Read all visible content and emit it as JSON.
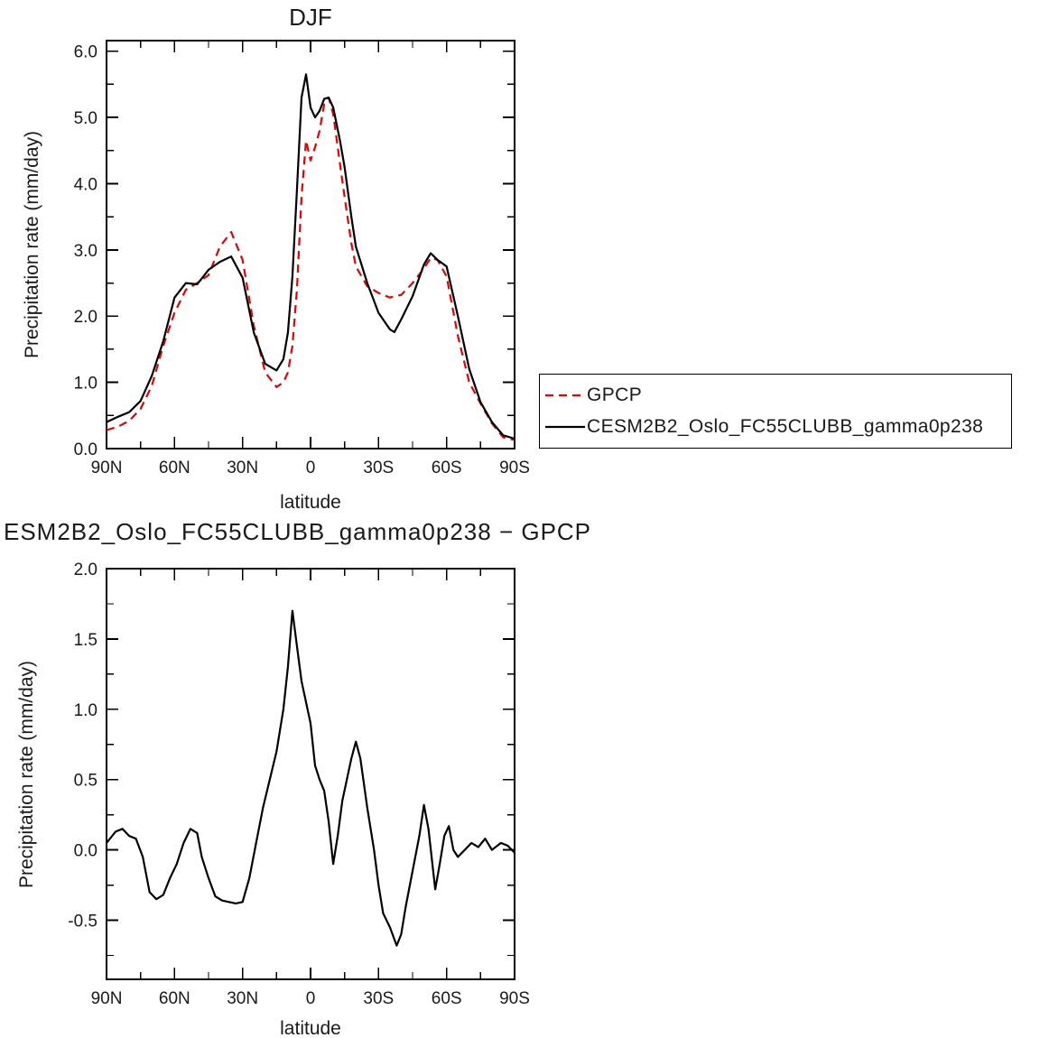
{
  "colors": {
    "gpcp_red": "#ea0000",
    "model_black": "#000000",
    "text": "#1a1a1a"
  },
  "legend": {
    "entries": [
      {
        "label": "GPCP",
        "color": "#ea0000",
        "dash": "9 6"
      },
      {
        "label": "CESM2B2_Oslo_FC55CLUBB_gamma0p238",
        "color": "#000000",
        "dash": ""
      }
    ]
  },
  "chart_data": [
    {
      "type": "line",
      "title": "DJF",
      "xlabel": "latitude",
      "ylabel": "Precipitation rate (mm/day)",
      "xlim": [
        90,
        -90
      ],
      "ylim": [
        0,
        6.16
      ],
      "grid": false,
      "legend_position": "right-outside-box",
      "xticks": [
        {
          "value": 90,
          "label": "90N"
        },
        {
          "value": 60,
          "label": "60N"
        },
        {
          "value": 30,
          "label": "30N"
        },
        {
          "value": 0,
          "label": "0"
        },
        {
          "value": -30,
          "label": "30S"
        },
        {
          "value": -60,
          "label": "60S"
        },
        {
          "value": -90,
          "label": "90S"
        }
      ],
      "xminor_step": 15,
      "yticks": [
        {
          "value": 0,
          "label": "0.0"
        },
        {
          "value": 1,
          "label": "1.0"
        },
        {
          "value": 2,
          "label": "2.0"
        },
        {
          "value": 3,
          "label": "3.0"
        },
        {
          "value": 4,
          "label": "4.0"
        },
        {
          "value": 5,
          "label": "5.0"
        },
        {
          "value": 6,
          "label": "6.0"
        }
      ],
      "yminor_step": 0.5,
      "x": [
        90,
        85,
        80,
        75,
        70,
        65,
        60,
        55,
        50,
        45,
        40,
        35,
        30,
        25,
        20,
        15,
        12,
        10,
        8,
        6,
        4,
        2,
        0,
        -2,
        -4,
        -6,
        -8,
        -10,
        -13,
        -15,
        -18,
        -20,
        -25,
        -30,
        -35,
        -37,
        -40,
        -45,
        -50,
        -53,
        -56,
        -60,
        -65,
        -70,
        -75,
        -80,
        -85,
        -90
      ],
      "series": [
        {
          "name": "GPCP",
          "color": "#ea0000",
          "dash": "9 6",
          "values": [
            0.28,
            0.33,
            0.42,
            0.6,
            0.95,
            1.55,
            2.05,
            2.4,
            2.5,
            2.62,
            3.05,
            3.27,
            2.85,
            1.85,
            1.15,
            0.93,
            1.0,
            1.15,
            1.55,
            2.4,
            3.8,
            4.65,
            4.35,
            4.55,
            4.8,
            5.2,
            5.3,
            5.05,
            4.3,
            3.8,
            3.1,
            2.75,
            2.45,
            2.35,
            2.28,
            2.3,
            2.32,
            2.5,
            2.72,
            2.88,
            2.85,
            2.6,
            1.7,
            1.0,
            0.68,
            0.38,
            0.17,
            0.13
          ]
        },
        {
          "name": "CESM2B2_Oslo_FC55CLUBB_gamma0p238",
          "color": "#000000",
          "dash": "",
          "values": [
            0.4,
            0.48,
            0.55,
            0.72,
            1.1,
            1.62,
            2.28,
            2.5,
            2.48,
            2.7,
            2.82,
            2.9,
            2.58,
            1.75,
            1.28,
            1.18,
            1.35,
            1.75,
            2.6,
            3.9,
            5.3,
            5.65,
            5.15,
            5.0,
            5.1,
            5.28,
            5.3,
            5.15,
            4.65,
            4.25,
            3.5,
            3.05,
            2.5,
            2.05,
            1.8,
            1.76,
            1.95,
            2.3,
            2.78,
            2.95,
            2.85,
            2.75,
            2.0,
            1.2,
            0.7,
            0.4,
            0.2,
            0.15
          ]
        }
      ]
    },
    {
      "type": "line",
      "title": "ESM2B2_Oslo_FC55CLUBB_gamma0p238 − GPCP",
      "xlabel": "latitude",
      "ylabel": "Precipitation rate (mm/day)",
      "xlim": [
        90,
        -90
      ],
      "ylim": [
        -0.92,
        2.0
      ],
      "grid": false,
      "xticks": [
        {
          "value": 90,
          "label": "90N"
        },
        {
          "value": 60,
          "label": "60N"
        },
        {
          "value": 30,
          "label": "30N"
        },
        {
          "value": 0,
          "label": "0"
        },
        {
          "value": -30,
          "label": "30S"
        },
        {
          "value": -60,
          "label": "60S"
        },
        {
          "value": -90,
          "label": "90S"
        }
      ],
      "xminor_step": 15,
      "yticks": [
        {
          "value": -0.5,
          "label": "-0.5"
        },
        {
          "value": 0,
          "label": "0.0"
        },
        {
          "value": 0.5,
          "label": "0.5"
        },
        {
          "value": 1,
          "label": "1.0"
        },
        {
          "value": 1.5,
          "label": "1.5"
        },
        {
          "value": 2,
          "label": "2.0"
        }
      ],
      "yminor_step": 0.25,
      "x": [
        90,
        86,
        83,
        80,
        77,
        74,
        71,
        68,
        65,
        62,
        59,
        56,
        53,
        50,
        48,
        45,
        42,
        39,
        36,
        33,
        30,
        27,
        24,
        21,
        18,
        15,
        12,
        10,
        8,
        6,
        4,
        2,
        0,
        -2,
        -4,
        -6,
        -8,
        -10,
        -12,
        -14,
        -16,
        -18,
        -20,
        -22,
        -25,
        -28,
        -30,
        -32,
        -35,
        -38,
        -40,
        -42,
        -45,
        -48,
        -50,
        -52,
        -55,
        -57,
        -59,
        -61,
        -63,
        -65,
        -68,
        -71,
        -74,
        -77,
        -80,
        -84,
        -87,
        -90
      ],
      "series": [
        {
          "name": "ESM2B2_Oslo_FC55CLUBB_gamma0p238 − GPCP",
          "color": "#000000",
          "dash": "",
          "values": [
            0.05,
            0.13,
            0.15,
            0.1,
            0.08,
            -0.05,
            -0.3,
            -0.35,
            -0.32,
            -0.2,
            -0.1,
            0.05,
            0.15,
            0.12,
            -0.05,
            -0.2,
            -0.33,
            -0.36,
            -0.37,
            -0.38,
            -0.37,
            -0.2,
            0.05,
            0.3,
            0.5,
            0.7,
            1.0,
            1.3,
            1.7,
            1.45,
            1.2,
            1.05,
            0.9,
            0.6,
            0.5,
            0.42,
            0.2,
            -0.1,
            0.1,
            0.35,
            0.5,
            0.65,
            0.77,
            0.65,
            0.3,
            0.0,
            -0.25,
            -0.45,
            -0.55,
            -0.68,
            -0.6,
            -0.4,
            -0.15,
            0.1,
            0.32,
            0.15,
            -0.28,
            -0.1,
            0.1,
            0.17,
            0.0,
            -0.05,
            0.0,
            0.05,
            0.02,
            0.08,
            0.0,
            0.05,
            0.03,
            -0.02
          ]
        }
      ]
    }
  ]
}
